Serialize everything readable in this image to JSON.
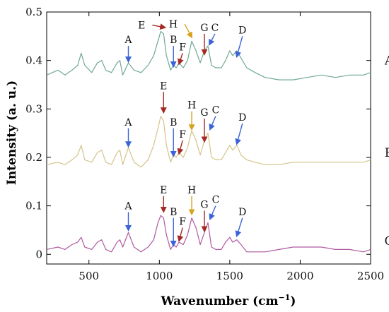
{
  "chart_data": {
    "type": "line",
    "xlabel": "Wavenumber (cm",
    "xlabel_sup": "−1",
    "xlabel_close": ")",
    "ylabel": "Intensity (a. u.)",
    "xlim": [
      200,
      2500
    ],
    "ylim": [
      -0.02,
      0.5
    ],
    "x_ticks": [
      500,
      1000,
      1500,
      2000,
      2500
    ],
    "y_ticks": [
      0,
      0.1,
      0.2,
      0.3,
      0.4,
      0.5
    ],
    "x_tick_labels": [
      "500",
      "1000",
      "1500",
      "2000",
      "2500"
    ],
    "y_tick_labels": [
      "0",
      "0.1",
      "0.2",
      "0.3",
      "0.4",
      "0.5"
    ],
    "grid": false,
    "legend": "none",
    "series": [
      {
        "name": "A",
        "color": "#6fa892",
        "x": [
          200,
          280,
          330,
          380,
          420,
          445,
          470,
          520,
          560,
          590,
          620,
          660,
          700,
          720,
          740,
          780,
          820,
          870,
          920,
          960,
          990,
          1010,
          1030,
          1050,
          1080,
          1100,
          1120,
          1140,
          1170,
          1200,
          1230,
          1260,
          1290,
          1320,
          1345,
          1370,
          1400,
          1440,
          1470,
          1500,
          1520,
          1550,
          1580,
          1620,
          1680,
          1750,
          1850,
          1950,
          2050,
          2150,
          2250,
          2350,
          2450,
          2500
        ],
        "y": [
          0.37,
          0.38,
          0.37,
          0.38,
          0.39,
          0.415,
          0.39,
          0.375,
          0.395,
          0.4,
          0.38,
          0.375,
          0.395,
          0.4,
          0.37,
          0.395,
          0.38,
          0.375,
          0.39,
          0.41,
          0.44,
          0.46,
          0.455,
          0.41,
          0.38,
          0.39,
          0.385,
          0.395,
          0.385,
          0.4,
          0.44,
          0.42,
          0.395,
          0.42,
          0.43,
          0.39,
          0.385,
          0.385,
          0.4,
          0.42,
          0.41,
          0.42,
          0.405,
          0.385,
          0.375,
          0.365,
          0.36,
          0.36,
          0.365,
          0.37,
          0.365,
          0.37,
          0.37,
          0.375
        ]
      },
      {
        "name": "B",
        "color": "#d4c48a",
        "x": [
          200,
          280,
          330,
          380,
          420,
          445,
          470,
          520,
          560,
          590,
          620,
          660,
          700,
          720,
          740,
          780,
          820,
          870,
          920,
          960,
          990,
          1010,
          1030,
          1050,
          1080,
          1100,
          1120,
          1140,
          1170,
          1200,
          1230,
          1260,
          1290,
          1320,
          1345,
          1370,
          1400,
          1440,
          1470,
          1500,
          1520,
          1550,
          1580,
          1620,
          1680,
          1750,
          1850,
          1950,
          2050,
          2150,
          2250,
          2350,
          2450,
          2500
        ],
        "y": [
          0.185,
          0.19,
          0.185,
          0.195,
          0.205,
          0.225,
          0.195,
          0.19,
          0.21,
          0.215,
          0.19,
          0.185,
          0.21,
          0.215,
          0.185,
          0.22,
          0.19,
          0.18,
          0.195,
          0.225,
          0.26,
          0.285,
          0.275,
          0.225,
          0.19,
          0.205,
          0.2,
          0.21,
          0.2,
          0.22,
          0.255,
          0.235,
          0.205,
          0.235,
          0.25,
          0.2,
          0.195,
          0.195,
          0.21,
          0.225,
          0.215,
          0.225,
          0.205,
          0.195,
          0.19,
          0.185,
          0.185,
          0.19,
          0.19,
          0.19,
          0.19,
          0.19,
          0.19,
          0.195
        ]
      },
      {
        "name": "C",
        "color": "#b05aa0",
        "x": [
          200,
          280,
          330,
          380,
          420,
          445,
          470,
          520,
          560,
          590,
          620,
          660,
          700,
          720,
          740,
          780,
          820,
          870,
          920,
          960,
          990,
          1010,
          1030,
          1050,
          1080,
          1100,
          1120,
          1140,
          1170,
          1200,
          1230,
          1260,
          1290,
          1320,
          1345,
          1370,
          1400,
          1440,
          1470,
          1500,
          1520,
          1550,
          1580,
          1620,
          1680,
          1750,
          1850,
          1950,
          2050,
          2150,
          2250,
          2350,
          2450,
          2500
        ],
        "y": [
          0.01,
          0.015,
          0.01,
          0.02,
          0.025,
          0.035,
          0.015,
          0.01,
          0.025,
          0.03,
          0.01,
          0.005,
          0.025,
          0.03,
          0.015,
          0.045,
          0.015,
          0.005,
          0.015,
          0.03,
          0.065,
          0.08,
          0.075,
          0.04,
          0.01,
          0.02,
          0.015,
          0.025,
          0.02,
          0.04,
          0.075,
          0.055,
          0.02,
          0.045,
          0.065,
          0.015,
          0.01,
          0.01,
          0.025,
          0.035,
          0.025,
          0.03,
          0.02,
          0.005,
          0.005,
          0.005,
          0.01,
          0.015,
          0.015,
          0.015,
          0.01,
          0.01,
          0.005,
          0.01
        ]
      }
    ],
    "series_labels": [
      {
        "text": "A",
        "x": 2430,
        "y": 0.4
      },
      {
        "text": "B",
        "x": 2430,
        "y": 0.21
      },
      {
        "text": "C",
        "x": 2430,
        "y": 0.028
      }
    ],
    "annotations": [
      {
        "text": "A",
        "color": "#3a63d8",
        "x": 780,
        "y": 0.395,
        "ox": 0,
        "oy": 0.035,
        "label_pos": "above"
      },
      {
        "text": "E",
        "color": "#a52a23",
        "x": 1040,
        "y": 0.465,
        "ox": -90,
        "oy": 0.008,
        "label_pos": "left"
      },
      {
        "text": "B",
        "color": "#3a63d8",
        "x": 1100,
        "y": 0.385,
        "ox": 0,
        "oy": 0.045,
        "label_pos": "above"
      },
      {
        "text": "F",
        "color": "#a52a23",
        "x": 1140,
        "y": 0.39,
        "ox": 25,
        "oy": 0.025,
        "label_pos": "above"
      },
      {
        "text": "H",
        "color": "#d4a21c",
        "x": 1230,
        "y": 0.445,
        "ox": -50,
        "oy": 0.03,
        "label_pos": "left"
      },
      {
        "text": "G",
        "color": "#a52a23",
        "x": 1320,
        "y": 0.41,
        "ox": 0,
        "oy": 0.045,
        "label_pos": "above"
      },
      {
        "text": "C",
        "color": "#3a63d8",
        "x": 1355,
        "y": 0.43,
        "ox": 40,
        "oy": 0.025,
        "label_pos": "above"
      },
      {
        "text": "D",
        "color": "#3a63d8",
        "x": 1550,
        "y": 0.405,
        "ox": 40,
        "oy": 0.045,
        "label_pos": "above"
      },
      {
        "text": "A",
        "color": "#3a63d8",
        "x": 780,
        "y": 0.22,
        "ox": 0,
        "oy": 0.04,
        "label_pos": "above"
      },
      {
        "text": "E",
        "color": "#a52a23",
        "x": 1030,
        "y": 0.29,
        "ox": 0,
        "oy": 0.045,
        "label_pos": "above"
      },
      {
        "text": "B",
        "color": "#3a63d8",
        "x": 1100,
        "y": 0.2,
        "ox": 0,
        "oy": 0.06,
        "label_pos": "above"
      },
      {
        "text": "F",
        "color": "#a52a23",
        "x": 1140,
        "y": 0.205,
        "ox": 25,
        "oy": 0.03,
        "label_pos": "above"
      },
      {
        "text": "H",
        "color": "#d4a21c",
        "x": 1230,
        "y": 0.255,
        "ox": 0,
        "oy": 0.04,
        "label_pos": "above"
      },
      {
        "text": "G",
        "color": "#a52a23",
        "x": 1320,
        "y": 0.23,
        "ox": 0,
        "oy": 0.05,
        "label_pos": "above"
      },
      {
        "text": "C",
        "color": "#3a63d8",
        "x": 1360,
        "y": 0.255,
        "ox": 40,
        "oy": 0.03,
        "label_pos": "above"
      },
      {
        "text": "D",
        "color": "#3a63d8",
        "x": 1550,
        "y": 0.225,
        "ox": 40,
        "oy": 0.045,
        "label_pos": "above"
      },
      {
        "text": "A",
        "color": "#3a63d8",
        "x": 780,
        "y": 0.047,
        "ox": 0,
        "oy": 0.04,
        "label_pos": "above"
      },
      {
        "text": "E",
        "color": "#a52a23",
        "x": 1030,
        "y": 0.085,
        "ox": 0,
        "oy": 0.035,
        "label_pos": "above"
      },
      {
        "text": "B",
        "color": "#3a63d8",
        "x": 1100,
        "y": 0.015,
        "ox": 0,
        "oy": 0.06,
        "label_pos": "above"
      },
      {
        "text": "F",
        "color": "#a52a23",
        "x": 1140,
        "y": 0.025,
        "ox": 25,
        "oy": 0.03,
        "label_pos": "above"
      },
      {
        "text": "H",
        "color": "#d4a21c",
        "x": 1230,
        "y": 0.08,
        "ox": 0,
        "oy": 0.04,
        "label_pos": "above"
      },
      {
        "text": "G",
        "color": "#a52a23",
        "x": 1320,
        "y": 0.045,
        "ox": 0,
        "oy": 0.045,
        "label_pos": "above"
      },
      {
        "text": "C",
        "color": "#3a63d8",
        "x": 1360,
        "y": 0.07,
        "ox": 40,
        "oy": 0.03,
        "label_pos": "above"
      },
      {
        "text": "D",
        "color": "#3a63d8",
        "x": 1550,
        "y": 0.035,
        "ox": 40,
        "oy": 0.04,
        "label_pos": "above"
      }
    ]
  }
}
